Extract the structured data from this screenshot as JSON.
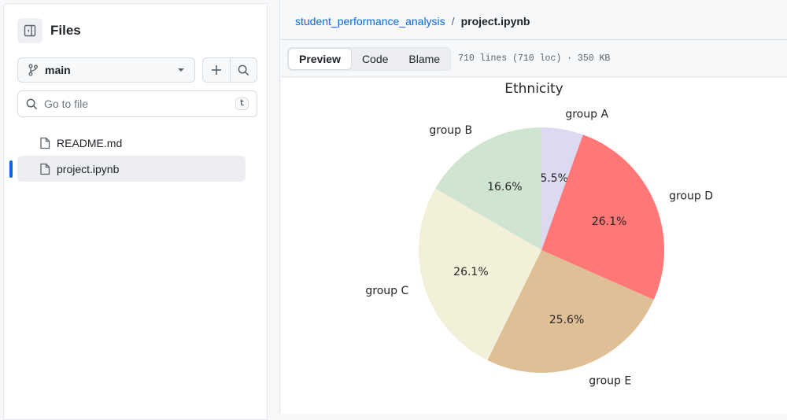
{
  "sidebar": {
    "title": "Files",
    "branch": "main",
    "search_placeholder": "Go to file",
    "search_shortcut": "t",
    "files": [
      {
        "name": "README.md",
        "active": false
      },
      {
        "name": "project.ipynb",
        "active": true
      }
    ]
  },
  "breadcrumb": {
    "repo": "student_performance_analysis",
    "separator": "/",
    "file": "project.ipynb"
  },
  "file_toolbar": {
    "tabs": [
      "Preview",
      "Code",
      "Blame"
    ],
    "selected_tab": "Preview",
    "info": "710 lines (710 loc) · 350 KB"
  },
  "chart_data": {
    "type": "pie",
    "title": "Ethnicity",
    "categories": [
      "group A",
      "group D",
      "group E",
      "group C",
      "group B"
    ],
    "values": [
      5.5,
      26.1,
      25.6,
      26.1,
      16.6
    ],
    "labels_pct": [
      "5.5%",
      "26.1%",
      "25.6%",
      "26.1%",
      "16.6%"
    ],
    "colors": [
      "#dcdaf0",
      "#ff7777",
      "#dfc096",
      "#f2f0d8",
      "#cfe5d1"
    ],
    "start_angle": 90,
    "direction": "clockwise-visual order from top"
  }
}
